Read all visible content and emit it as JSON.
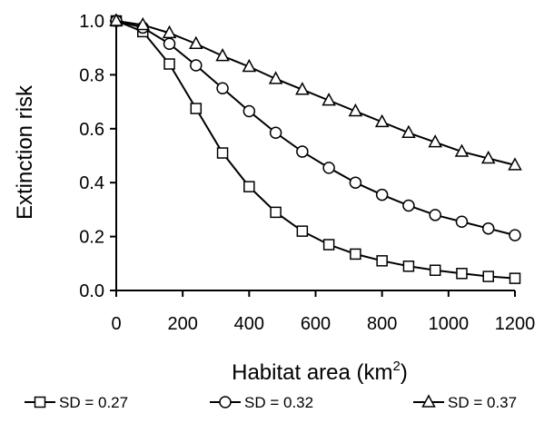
{
  "chart_data": {
    "type": "line",
    "title": "",
    "xlabel": "Habitat area (km",
    "xlabel_superscript": "2",
    "xlabel_suffix": ")",
    "ylabel": "Extinction risk",
    "xlim": [
      0,
      1200
    ],
    "ylim": [
      0,
      1
    ],
    "xticks": [
      "0",
      "200",
      "400",
      "600",
      "800",
      "1000",
      "1200"
    ],
    "yticks": [
      "0.0",
      "0.2",
      "0.4",
      "0.6",
      "0.8",
      "1.0"
    ],
    "grid": false,
    "legend_position": "bottom",
    "x": [
      0,
      80,
      160,
      240,
      320,
      400,
      480,
      560,
      640,
      720,
      800,
      880,
      960,
      1040,
      1120,
      1200
    ],
    "series": [
      {
        "name": "SD = 0.27",
        "marker": "square",
        "values": [
          1.0,
          0.96,
          0.84,
          0.675,
          0.51,
          0.385,
          0.29,
          0.22,
          0.17,
          0.135,
          0.11,
          0.09,
          0.075,
          0.063,
          0.052,
          0.045
        ]
      },
      {
        "name": "SD = 0.32",
        "marker": "circle",
        "values": [
          1.0,
          0.975,
          0.915,
          0.835,
          0.75,
          0.665,
          0.585,
          0.515,
          0.455,
          0.4,
          0.355,
          0.315,
          0.28,
          0.255,
          0.23,
          0.205
        ]
      },
      {
        "name": "SD = 0.37",
        "marker": "triangle",
        "values": [
          1.0,
          0.985,
          0.955,
          0.915,
          0.87,
          0.83,
          0.785,
          0.745,
          0.705,
          0.665,
          0.625,
          0.585,
          0.55,
          0.515,
          0.49,
          0.465
        ]
      }
    ]
  }
}
